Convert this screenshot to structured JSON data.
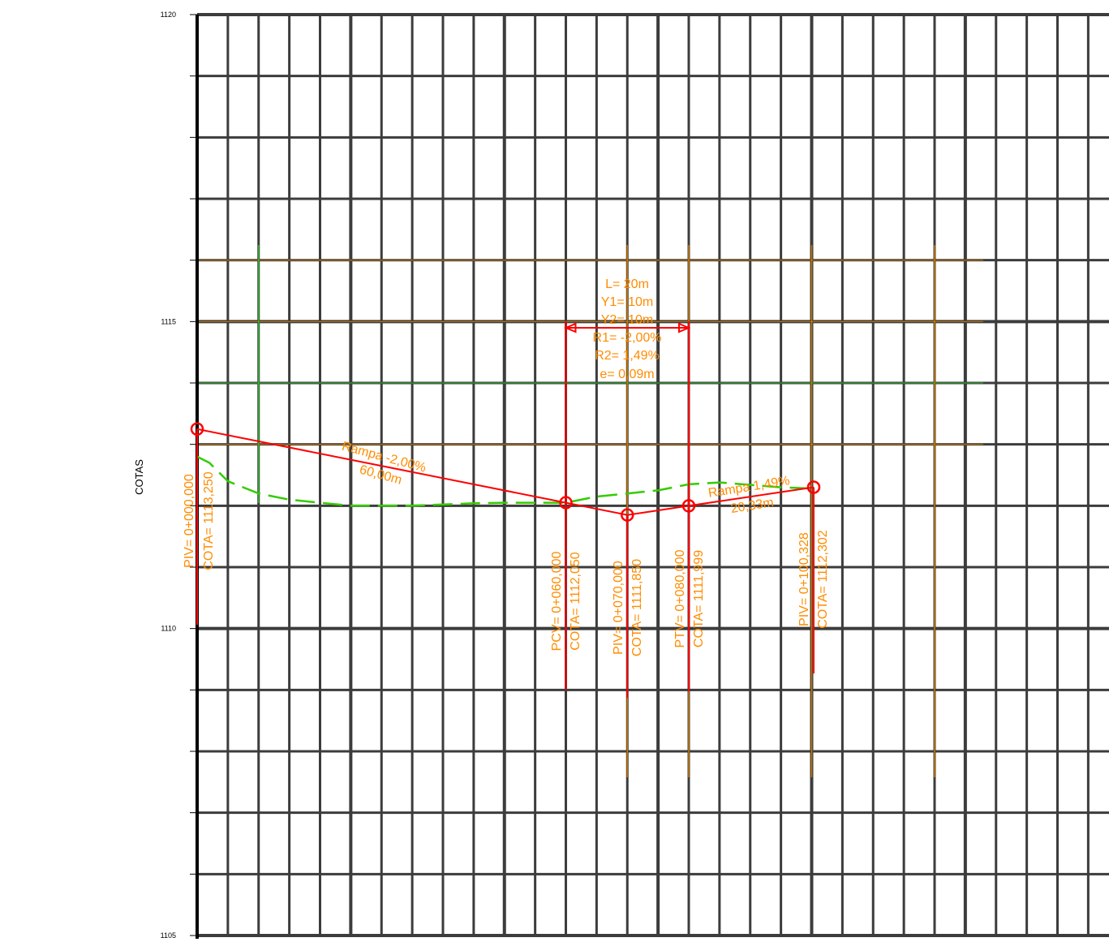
{
  "colors": {
    "grid": "#3c3c3c",
    "axis": "#000000",
    "grade_line": "#ff0000",
    "terrain": "#33cc00",
    "labels": "#ff8c00",
    "reference_green": "#2db42d",
    "reference_brown": "#c87800"
  },
  "axis": {
    "title": "COTAS",
    "y_range": [
      1105,
      1120
    ],
    "y_tick_labels": [
      "1120",
      "1115",
      "1110",
      "1105"
    ],
    "y_tick_values": [
      1120,
      1115,
      1110,
      1105
    ],
    "station_range": [
      0,
      150
    ],
    "grid_step_elevation": 1,
    "grid_step_station": 5,
    "grid": true
  },
  "curve_parameters": {
    "lines": [
      "L= 20m",
      "Y1= 10m",
      "Y2= 10m",
      "R1= -2,00%",
      "R2= 1,49%",
      "e= 0,09m"
    ]
  },
  "grades": [
    {
      "text": "Rampa -2,00%",
      "length": "60,00m"
    },
    {
      "text": "Rampa 1,49%",
      "length": "20,33m"
    }
  ],
  "stations": [
    {
      "name": "piv-start",
      "station": 0,
      "elevation": 1113.25,
      "line1": "PIV= 0+000,000",
      "line2": "COTA= 1113,250"
    },
    {
      "name": "pcv",
      "station": 60,
      "elevation": 1112.05,
      "line1": "PCV= 0+060,000",
      "line2": "COTA= 1112,050"
    },
    {
      "name": "piv-mid",
      "station": 70,
      "elevation": 1111.85,
      "line1": "PIV= 0+070,000",
      "line2": "COTA= 1111,850"
    },
    {
      "name": "ptv",
      "station": 80,
      "elevation": 1111.999,
      "line1": "PTV= 0+080,000",
      "line2": "COTA= 1111,999"
    },
    {
      "name": "piv-end",
      "station": 100.328,
      "elevation": 1112.302,
      "line1": "PIV= 0+100,328",
      "line2": "COTA= 1112,302"
    }
  ],
  "terrain_profile": {
    "station": [
      0,
      2,
      5,
      10,
      15,
      20,
      25,
      30,
      35,
      40,
      45,
      50,
      55,
      60,
      65,
      70,
      75,
      80,
      85,
      90,
      95,
      100
    ],
    "elevation": [
      1112.8,
      1112.7,
      1112.4,
      1112.2,
      1112.1,
      1112.05,
      1112.0,
      1112.0,
      1112.0,
      1112.02,
      1112.04,
      1112.05,
      1112.05,
      1112.05,
      1112.15,
      1112.2,
      1112.25,
      1112.35,
      1112.38,
      1112.34,
      1112.3,
      1112.28
    ]
  },
  "reference_lines": {
    "green_horizontal_elevation": 1114.0,
    "brown_horizontal_elevations": [
      1116.0,
      1115.0,
      1113.0
    ],
    "green_vertical_station": 10,
    "brown_vertical_stations": [
      70,
      80,
      100,
      120
    ]
  }
}
